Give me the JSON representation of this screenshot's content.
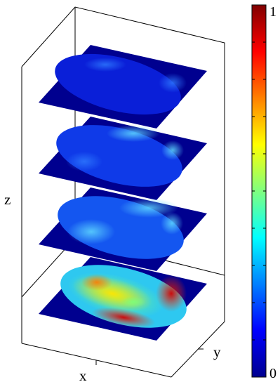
{
  "chart_data": {
    "type": "heatmap",
    "title": "",
    "axes": {
      "xlabel": "x",
      "ylabel": "y",
      "zlabel": "z"
    },
    "colormap": "jet",
    "colorbar": {
      "min": 0,
      "max": 1,
      "tick_labels": [
        "0",
        "1"
      ],
      "placement": "right"
    },
    "slices": [
      {
        "level": 4,
        "mean_intensity": 0.12,
        "max_intensity": 0.35
      },
      {
        "level": 3,
        "mean_intensity": 0.2,
        "max_intensity": 0.45
      },
      {
        "level": 2,
        "mean_intensity": 0.28,
        "max_intensity": 0.55
      },
      {
        "level": 1,
        "mean_intensity": 0.65,
        "max_intensity": 1.0
      }
    ],
    "grid": false
  }
}
